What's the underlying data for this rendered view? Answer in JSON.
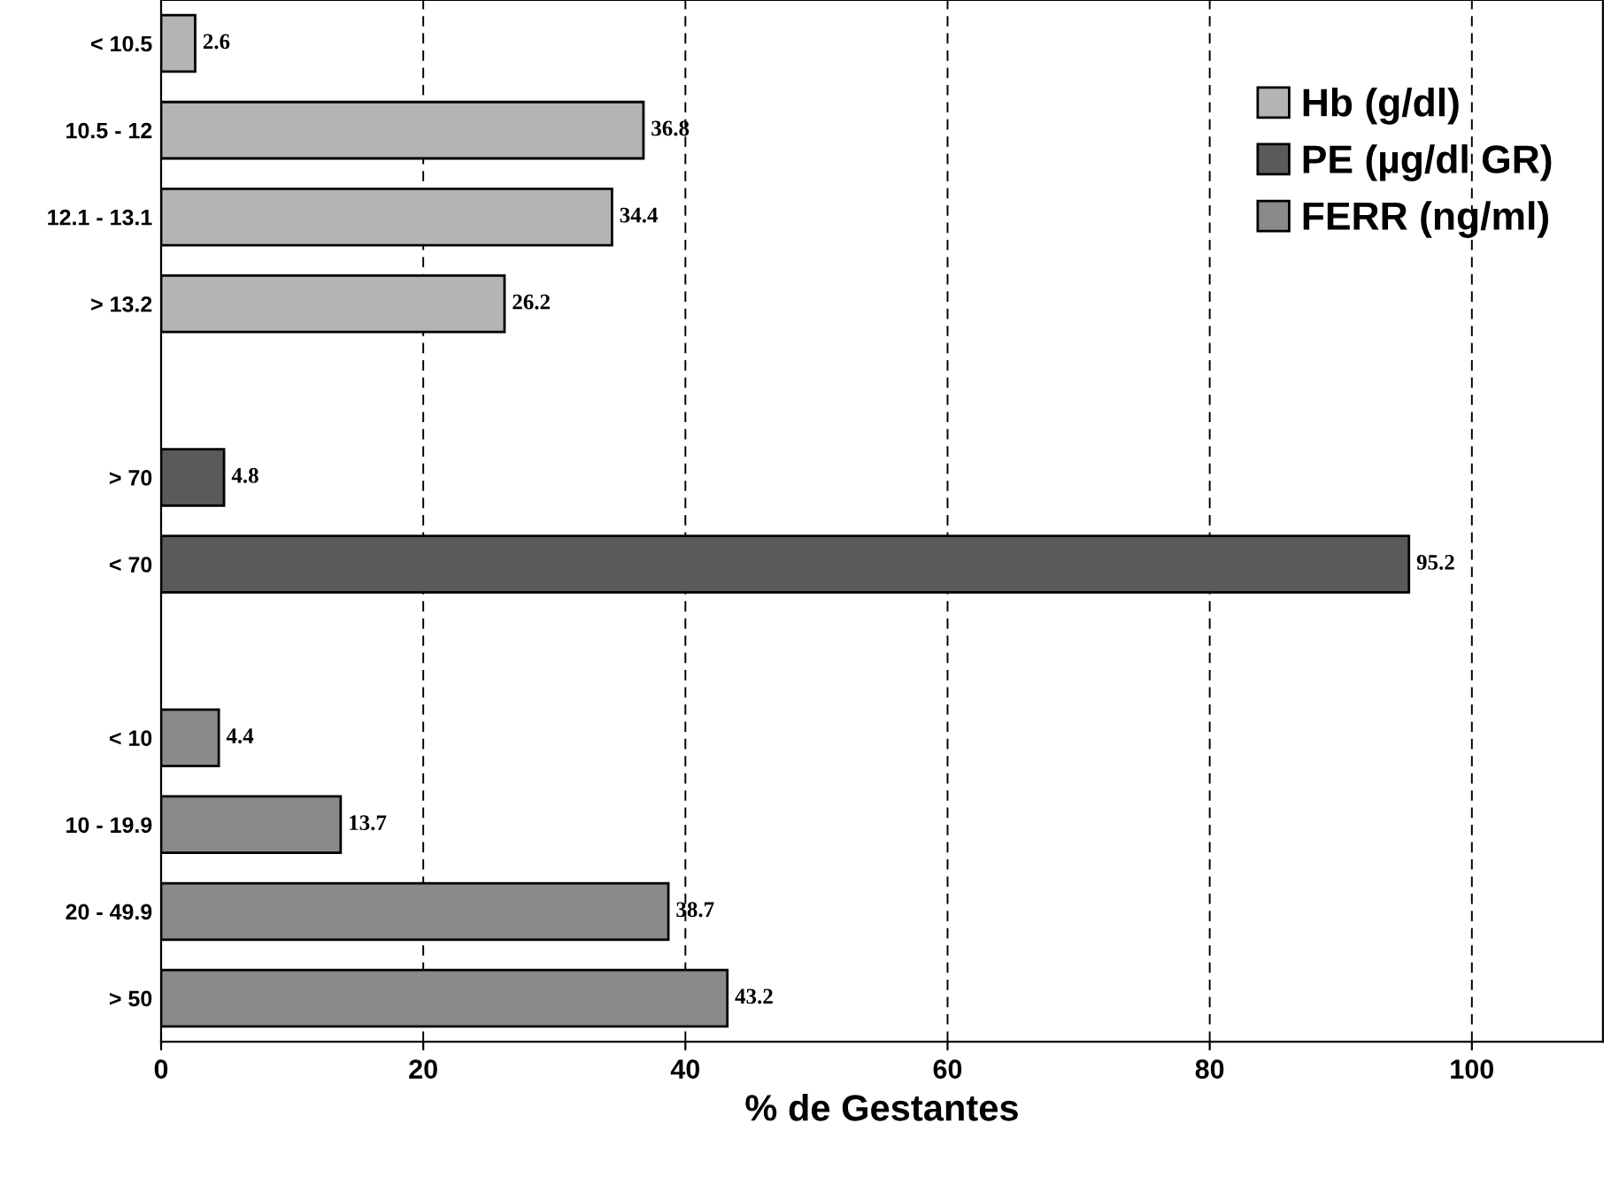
{
  "chart_data": {
    "type": "bar",
    "orientation": "horizontal",
    "xlabel": "% de Gestantes",
    "categories": [
      "< 10.5",
      "10.5 - 12",
      "12.1 - 13.1",
      "> 13.2",
      null,
      "> 70",
      "< 70",
      null,
      "< 10",
      "10 - 19.9",
      "20 - 49.9",
      "> 50"
    ],
    "series": [
      {
        "name": "Hb (g/dl)",
        "color": "#b4b4b4",
        "values": [
          2.6,
          36.8,
          34.4,
          26.2,
          null,
          null,
          null,
          null,
          null,
          null,
          null,
          null
        ]
      },
      {
        "name": "PE (µg/dl GR)",
        "color": "#5a5a5a",
        "values": [
          null,
          null,
          null,
          null,
          null,
          4.8,
          95.2,
          null,
          null,
          null,
          null,
          null
        ]
      },
      {
        "name": "FERR (ng/ml)",
        "color": "#8a8a8a",
        "values": [
          null,
          null,
          null,
          null,
          null,
          null,
          null,
          null,
          4.4,
          13.7,
          38.7,
          43.2
        ]
      }
    ],
    "xlim": [
      0,
      110
    ],
    "xticks": [
      0,
      20,
      40,
      60,
      80,
      100
    ],
    "grid": "x",
    "legend": "top right",
    "data_labels": true
  }
}
